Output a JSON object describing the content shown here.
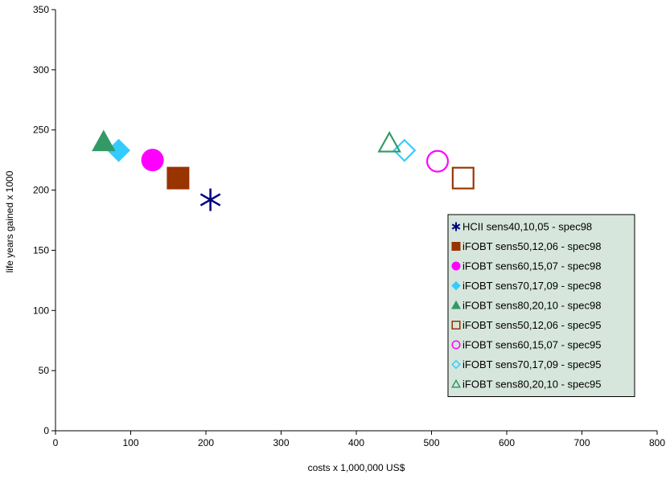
{
  "chart_data": {
    "type": "scatter",
    "title": "",
    "xlabel": "costs x 1,000,000 US$",
    "ylabel": "life years gained x 1000",
    "xlim": [
      0,
      800
    ],
    "ylim": [
      0,
      350
    ],
    "xticks": [
      0,
      100,
      200,
      300,
      400,
      500,
      600,
      700,
      800
    ],
    "yticks": [
      0,
      50,
      100,
      150,
      200,
      250,
      300,
      350
    ],
    "grid": false,
    "legend_position": "bottom-right",
    "legend_background": "#d6e6dc",
    "series": [
      {
        "name": "HCII sens40,10,05 - spec98",
        "marker": "asterisk",
        "filled": true,
        "color": "#000080",
        "x": 206,
        "y": 192
      },
      {
        "name": "iFOBT sens50,12,06 - spec98",
        "marker": "square",
        "filled": true,
        "color": "#993300",
        "x": 163,
        "y": 210
      },
      {
        "name": "iFOBT sens60,15,07 - spec98",
        "marker": "circle",
        "filled": true,
        "color": "#ff00ff",
        "x": 129,
        "y": 225
      },
      {
        "name": "iFOBT sens70,17,09 - spec98",
        "marker": "diamond",
        "filled": true,
        "color": "#33ccff",
        "x": 84,
        "y": 233
      },
      {
        "name": "iFOBT sens80,20,10 - spec98",
        "marker": "triangle",
        "filled": true,
        "color": "#339966",
        "x": 64,
        "y": 240
      },
      {
        "name": "iFOBT sens50,12,06 - spec95",
        "marker": "square",
        "filled": false,
        "color": "#993300",
        "x": 542,
        "y": 210
      },
      {
        "name": "iFOBT sens60,15,07 - spec95",
        "marker": "circle",
        "filled": false,
        "color": "#ff00ff",
        "x": 508,
        "y": 224
      },
      {
        "name": "iFOBT sens70,17,09 - spec95",
        "marker": "diamond",
        "filled": false,
        "color": "#33ccff",
        "x": 464,
        "y": 233
      },
      {
        "name": "iFOBT sens80,20,10 - spec95",
        "marker": "triangle",
        "filled": false,
        "color": "#339966",
        "x": 444,
        "y": 239
      }
    ]
  }
}
